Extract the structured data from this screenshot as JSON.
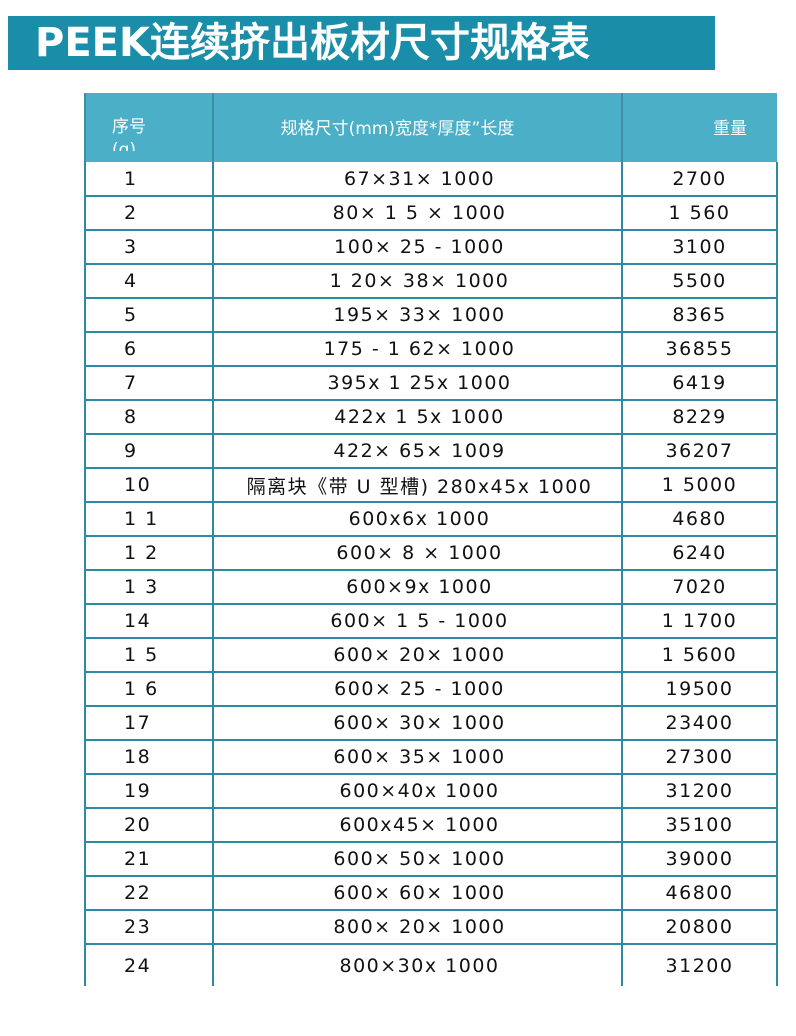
{
  "title": "PEEK连续挤出板材尺寸规格表",
  "table": {
    "headers": {
      "no": "序号",
      "no_unit": "(g)",
      "spec": "规格尺寸(mm)宽度*厚度”长度",
      "weight": "重量"
    },
    "rows": [
      {
        "no": "1",
        "spec": "67×31× 1000",
        "weight": "2700"
      },
      {
        "no": "2",
        "spec": "80× 1 5 × 1000",
        "weight": "1 560"
      },
      {
        "no": "3",
        "spec": "100× 25 - 1000",
        "weight": "3100"
      },
      {
        "no": "4",
        "spec": "1 20× 38× 1000",
        "weight": "5500"
      },
      {
        "no": "5",
        "spec": "195× 33× 1000",
        "weight": "8365"
      },
      {
        "no": "6",
        "spec": "175 - 1 62× 1000",
        "weight": "36855"
      },
      {
        "no": "7",
        "spec": "395x 1 25x 1000",
        "weight": "6419"
      },
      {
        "no": "8",
        "spec": "422x 1 5x 1000",
        "weight": "8229"
      },
      {
        "no": "9",
        "spec": "422× 65× 1009",
        "weight": "36207"
      },
      {
        "no": "10",
        "spec": "隔离块《带 U 型槽)  280x45x 1000",
        "weight": "1 5000"
      },
      {
        "no": "1 1",
        "spec": "600x6x 1000",
        "weight": "4680"
      },
      {
        "no": "1 2",
        "spec": "600× 8 × 1000",
        "weight": "6240"
      },
      {
        "no": "1 3",
        "spec": "600×9x 1000",
        "weight": "7020"
      },
      {
        "no": "14",
        "spec": "600× 1 5 - 1000",
        "weight": "1 1700"
      },
      {
        "no": "1 5",
        "spec": "600× 20× 1000",
        "weight": "1 5600"
      },
      {
        "no": "1 6",
        "spec": "600× 25 - 1000",
        "weight": "19500"
      },
      {
        "no": "17",
        "spec": "600× 30× 1000",
        "weight": "23400"
      },
      {
        "no": "18",
        "spec": "600× 35× 1000",
        "weight": "27300"
      },
      {
        "no": "19",
        "spec": "600×40x 1000",
        "weight": "31200"
      },
      {
        "no": "20",
        "spec": "600x45× 1000",
        "weight": "35100"
      },
      {
        "no": "21",
        "spec": "600× 50× 1000",
        "weight": "39000"
      },
      {
        "no": "22",
        "spec": "600× 60× 1000",
        "weight": "46800"
      },
      {
        "no": "23",
        "spec": "800× 20× 1000",
        "weight": "20800"
      },
      {
        "no": "24",
        "spec": "800×30x 1000",
        "weight": "31200"
      }
    ]
  }
}
